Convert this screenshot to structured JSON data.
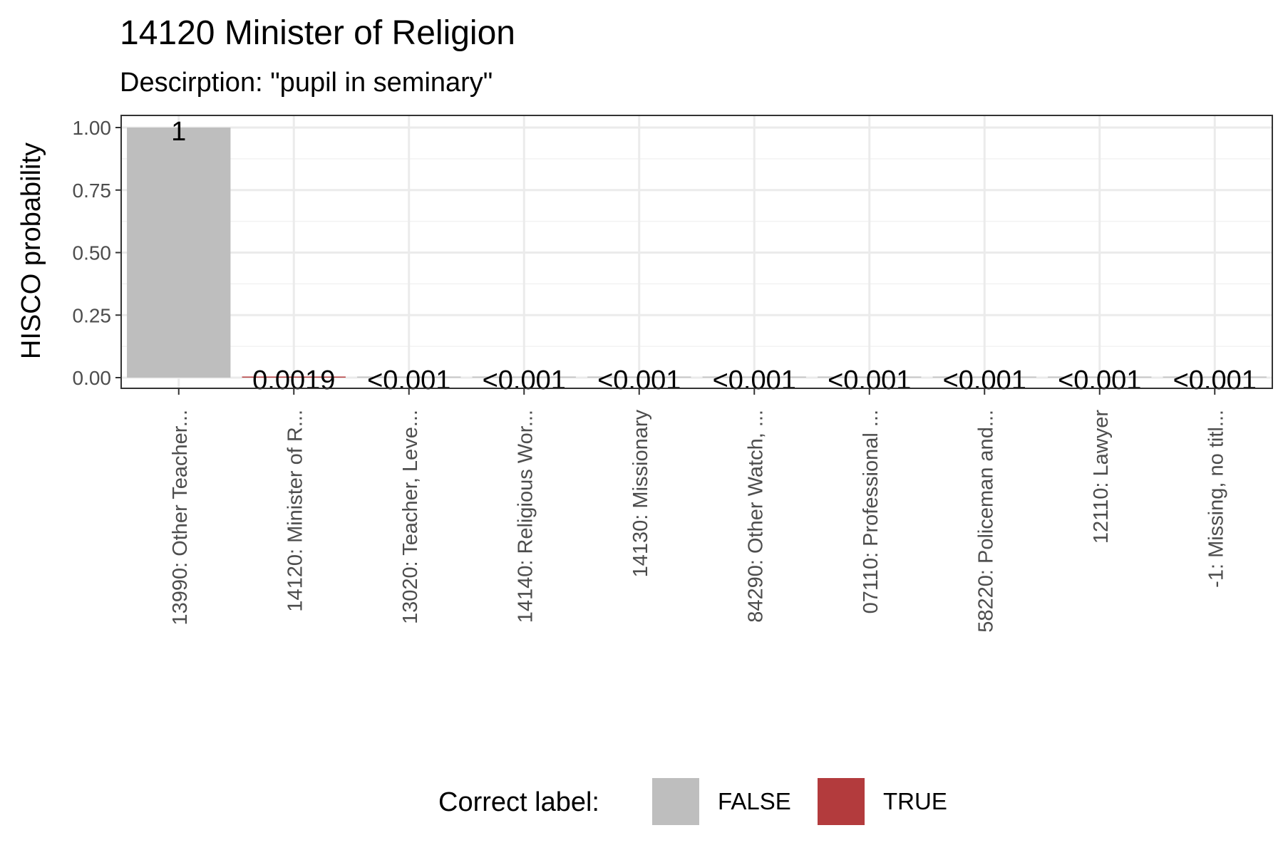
{
  "chart_data": {
    "type": "bar",
    "title": "14120 Minister of Religion",
    "subtitle": "Descirption: \"pupil in seminary\"",
    "ylabel": "HISCO probability",
    "xlabel": "",
    "ylim": [
      0,
      1.05
    ],
    "yticks": [
      0,
      0.25,
      0.5,
      0.75,
      1
    ],
    "ytick_labels": [
      "0.00",
      "0.25",
      "0.50",
      "0.75",
      "1.00"
    ],
    "grid": true,
    "categories": [
      "13990: Other Teacher...",
      "14120: Minister of R...",
      "13020: Teacher, Leve...",
      "14140: Religious Wor...",
      "14130: Missionary",
      "84290: Other Watch, ...",
      "07110: Professional ...",
      "58220: Policeman and...",
      "12110: Lawyer",
      "-1: Missing, no titl..."
    ],
    "values": [
      1,
      0.0019,
      0.0005,
      0.0004,
      0.0003,
      0.0002,
      0.0002,
      0.0001,
      0.0001,
      0.0001
    ],
    "value_labels": [
      "1",
      "0.0019",
      "<0.001",
      "<0.001",
      "<0.001",
      "<0.001",
      "<0.001",
      "<0.001",
      "<0.001",
      "<0.001"
    ],
    "correct": [
      false,
      true,
      false,
      false,
      false,
      false,
      false,
      false,
      false,
      false
    ],
    "legend": {
      "title": "Correct label:",
      "position": "bottom",
      "entries": [
        {
          "label": "FALSE",
          "color": "#bebebe"
        },
        {
          "label": "TRUE",
          "color": "#b33b3d"
        }
      ]
    }
  }
}
